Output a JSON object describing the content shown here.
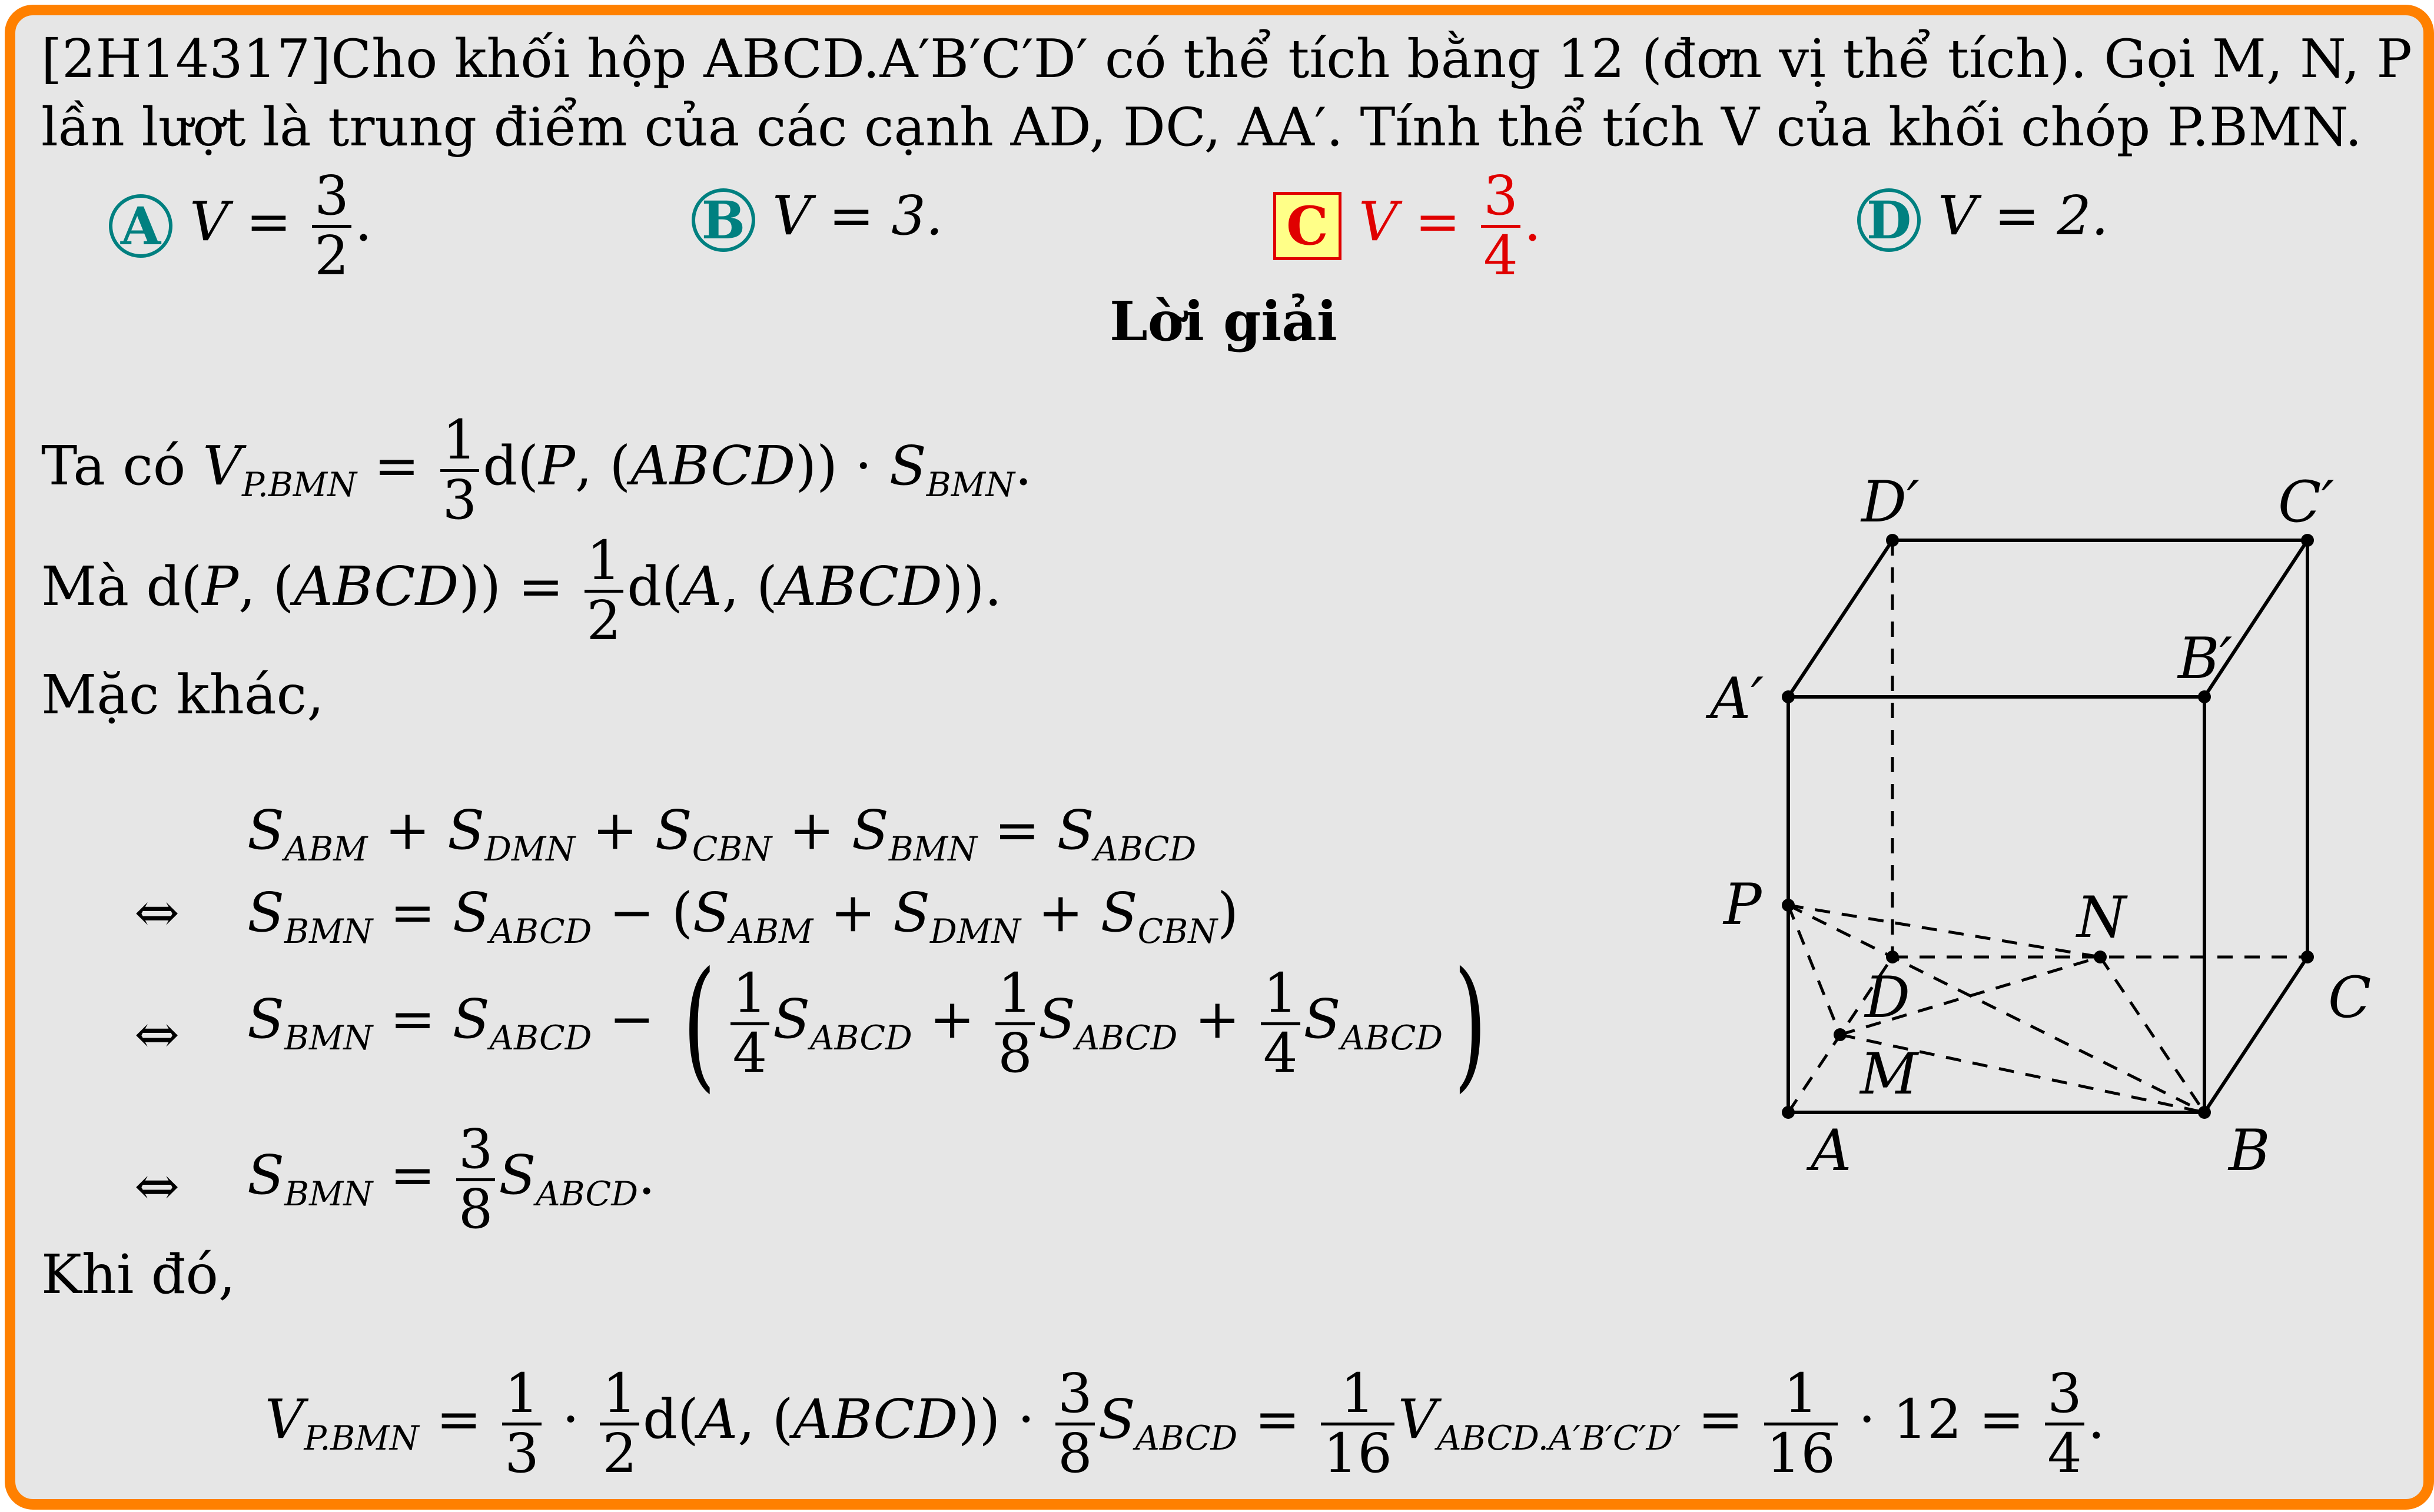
{
  "problem": {
    "line1": "[2H14317]Cho khối hộp ABCD.A′B′C′D′ có thể tích bằng 12 (đơn vị thể tích). Gọi M,  N,  P",
    "line2": "lần lượt là trung điểm của các cạnh AD,  DC,  AA′. Tính thể tích V của khối chóp P.BMN."
  },
  "options": [
    {
      "letter": "A",
      "expr": "V = ",
      "num": "3",
      "den": "2",
      "tail": ".",
      "selected": false
    },
    {
      "letter": "B",
      "expr": "V = 3.",
      "selected": false
    },
    {
      "letter": "C",
      "expr": "V = ",
      "num": "3",
      "den": "4",
      "tail": ".",
      "selected": true
    },
    {
      "letter": "D",
      "expr": "V = 2.",
      "selected": false
    }
  ],
  "solution_title": "Lời giải",
  "solution": {
    "s1_prefix": "Ta có ",
    "s2_prefix": "Mà ",
    "s3": "Mặc khác,",
    "s4": "Khi đó,",
    "equiv": "⇔",
    "twelve": "· 12 ="
  },
  "figure": {
    "labels": [
      "D′",
      "C′",
      "A′",
      "B′",
      "P",
      "N",
      "D",
      "C",
      "M",
      "A",
      "B"
    ]
  },
  "colors": {
    "accent": "#008080",
    "selected": "#e00000",
    "frame": "#ff8000",
    "background": "#e6e6e6"
  }
}
